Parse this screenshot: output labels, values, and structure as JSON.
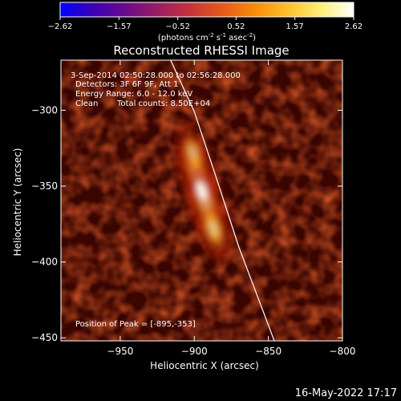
{
  "colorbar": {
    "ticks": [
      "-2.62",
      "-1.57",
      "-0.52",
      "0.52",
      "1.57",
      "2.62"
    ],
    "unit_main": "(photons cm",
    "unit_exp1": "-2",
    "unit_mid": " s",
    "unit_exp2": "-1",
    "unit_end": " asec",
    "unit_exp3": "-2",
    "unit_close": ")",
    "min": -2.62,
    "max": 2.62,
    "colormap": [
      "#0000ff",
      "#3a00b8",
      "#6a0a8c",
      "#9b1c63",
      "#c8323a",
      "#e85a18",
      "#f98d08",
      "#fdc12a",
      "#ffef7a",
      "#ffffff"
    ]
  },
  "annotations": {
    "time_range": "3-Sep-2014 02:50:28.000 to 02:56:28.000",
    "detectors": "Detectors: 3F 6F 9F, Att 1",
    "energy": "Energy Range: 6.0 - 12.0 keV",
    "method": "Clean",
    "counts": "Total counts: 8.50E+04",
    "peak": "Position of Peak = [-895,-353]"
  },
  "timestamp": "16-May-2022 17:17",
  "chart_data": {
    "type": "heatmap",
    "title": "Reconstructed RHESSI Image",
    "xlabel": "Heliocentric X (arcsec)",
    "ylabel": "Heliocentric Y (arcsec)",
    "xlim": [
      -990,
      -800
    ],
    "ylim": [
      -452,
      -267
    ],
    "xticks": [
      {
        "value": -950,
        "label": "−950"
      },
      {
        "value": -900,
        "label": "−900"
      },
      {
        "value": -850,
        "label": "−850"
      },
      {
        "value": -800,
        "label": "−800"
      }
    ],
    "yticks": [
      {
        "value": -300,
        "label": "−300"
      },
      {
        "value": -350,
        "label": "−350"
      },
      {
        "value": -400,
        "label": "−400"
      },
      {
        "value": -450,
        "label": "−450"
      }
    ],
    "peak": {
      "x": -895,
      "y": -353
    },
    "source_sections": [
      {
        "x": -898,
        "y": -342,
        "intensity": 1.0
      },
      {
        "x": -892,
        "y": -362,
        "intensity": 0.95
      },
      {
        "x": -887,
        "y": -378,
        "intensity": 0.78
      },
      {
        "x": -901,
        "y": -328,
        "intensity": 0.65
      }
    ],
    "limb_curve": [
      {
        "x": -916,
        "y": -267
      },
      {
        "x": -900,
        "y": -301
      },
      {
        "x": -885,
        "y": -345
      },
      {
        "x": -870,
        "y": -390
      },
      {
        "x": -846,
        "y": -452
      }
    ]
  }
}
